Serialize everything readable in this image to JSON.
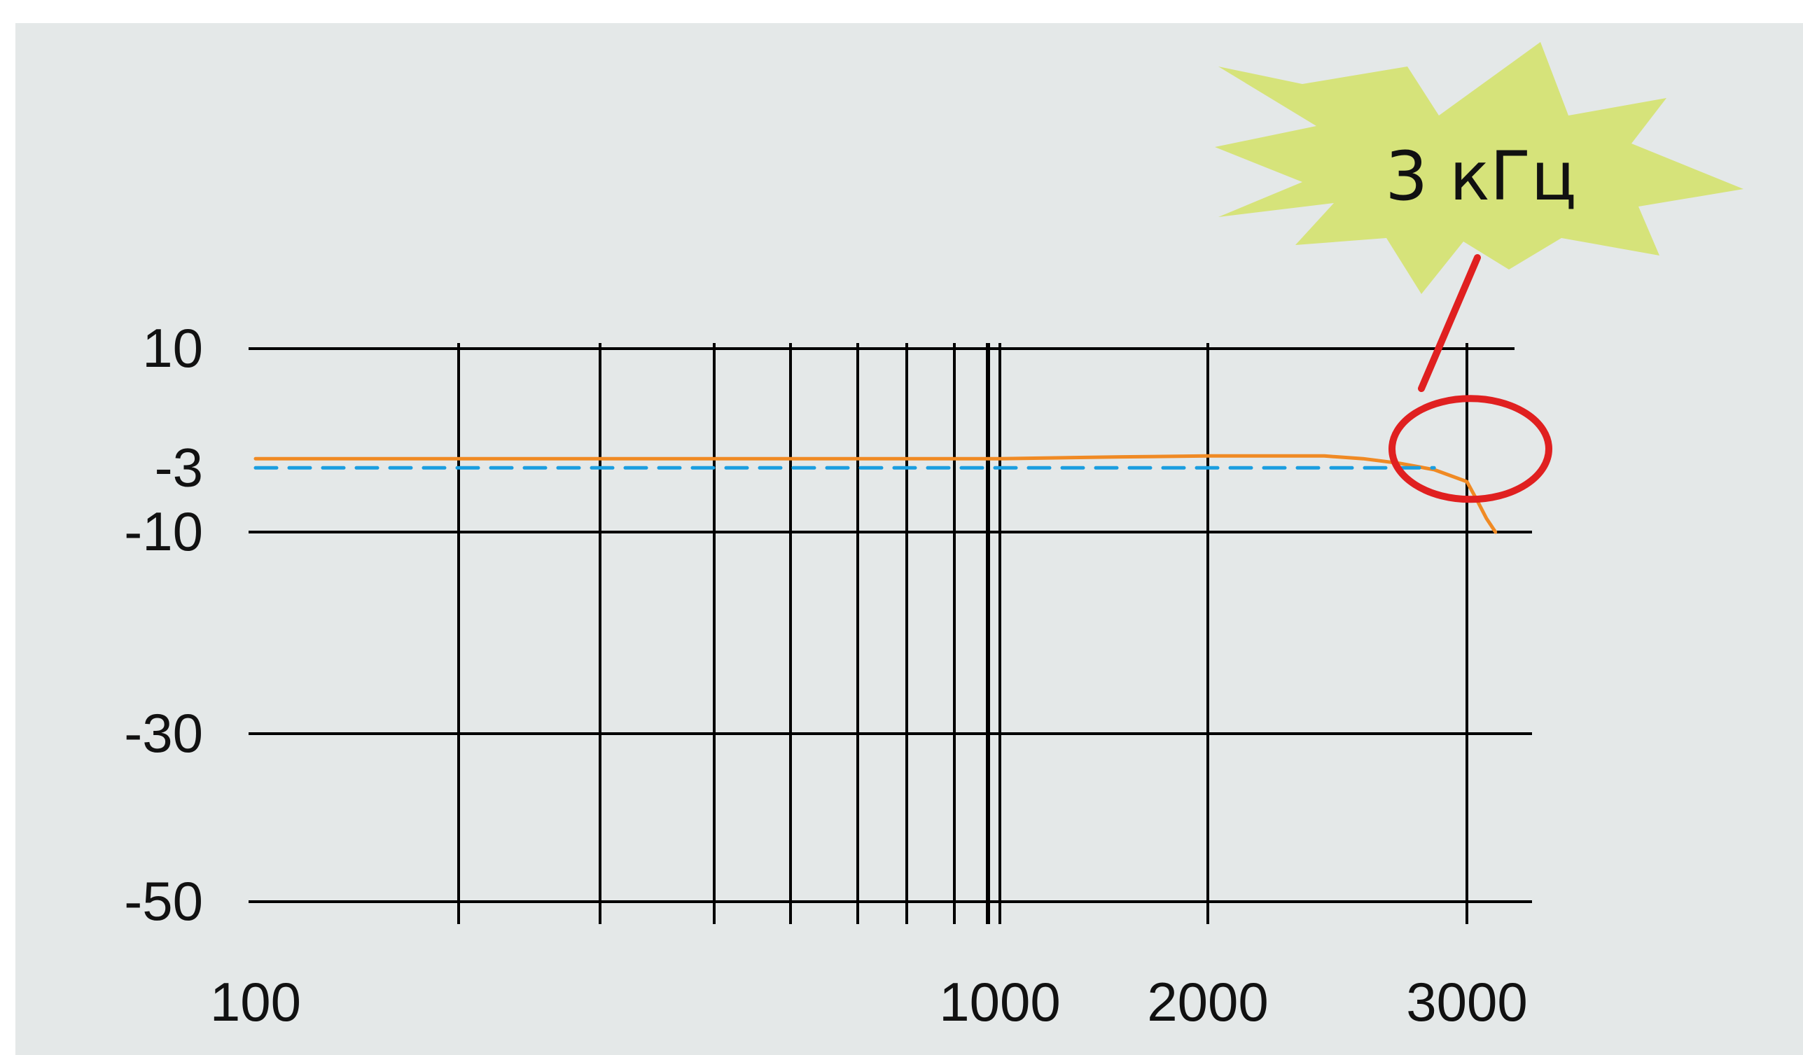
{
  "chart_data": {
    "type": "line",
    "title": "",
    "xlabel": "",
    "ylabel": "",
    "x_scale": "log",
    "xlim": [
      100,
      3500
    ],
    "ylim": [
      -50,
      10
    ],
    "grid": true,
    "y_ticks": [
      {
        "value": 10,
        "label": "10"
      },
      {
        "value": -3,
        "label": "-3",
        "color": "#1a9ee0"
      },
      {
        "value": -10,
        "label": "-10"
      },
      {
        "value": -30,
        "label": "-30"
      },
      {
        "value": -50,
        "label": "-50"
      }
    ],
    "x_tick_labels": [
      {
        "value": 100,
        "label": "100"
      },
      {
        "value": 1000,
        "label": "1000"
      },
      {
        "value": 2000,
        "label": "2000"
      },
      {
        "value": 3000,
        "label": "3000"
      }
    ],
    "x_gridlines": [
      200,
      300,
      400,
      500,
      600,
      700,
      800,
      900,
      1000,
      2000,
      3000
    ],
    "series": [
      {
        "color": "#f08a24",
        "style": "solid",
        "points": [
          [
            100,
            -2
          ],
          [
            200,
            -2
          ],
          [
            500,
            -2
          ],
          [
            1000,
            -2
          ],
          [
            1500,
            -1.8
          ],
          [
            2000,
            -1.7
          ],
          [
            2400,
            -1.7
          ],
          [
            2550,
            -2
          ],
          [
            2700,
            -2.5
          ],
          [
            2850,
            -3.2
          ],
          [
            3000,
            -4.5
          ],
          [
            3150,
            -6.5
          ],
          [
            3300,
            -8.5
          ],
          [
            3450,
            -10
          ]
        ]
      },
      {
        "color": "#1a9ee0",
        "style": "dashed",
        "points": [
          [
            100,
            -3
          ],
          [
            2850,
            -3
          ]
        ]
      }
    ],
    "annotations": [
      {
        "text": "3 кГц",
        "target_x": 3000,
        "target_y": -3
      }
    ]
  },
  "colors": {
    "background": "#e4e8e8",
    "grid": "#000000",
    "callout_fill": "#d6e37a",
    "highlight_ring": "#e02020",
    "pointer": "#e02020"
  }
}
